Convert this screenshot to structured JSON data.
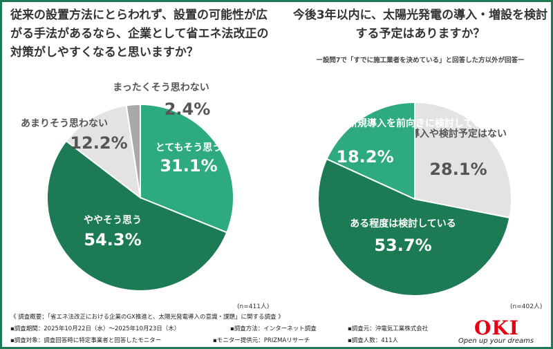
{
  "chart_data": [
    {
      "type": "pie",
      "title": "従来の設置方法にとらわれず、設置の可能性が広がる手法があるなら、企業として省エネ法改正の対策がしやすくなると思いますか？",
      "sample": "(n=411人)",
      "slices": [
        {
          "label": "とてもそう思う",
          "value": 31.1,
          "display": "31.1%",
          "color": "#2dab7f"
        },
        {
          "label": "ややそう思う",
          "value": 54.3,
          "display": "54.3%",
          "color": "#1c7a55"
        },
        {
          "label": "あまりそう思わない",
          "value": 12.2,
          "display": "12.2%",
          "color": "#e3e3e3"
        },
        {
          "label": "まったくそう思わない",
          "value": 2.4,
          "display": "2.4%",
          "color": "#a9a9a9"
        }
      ]
    },
    {
      "type": "pie",
      "title": "今後3年以内に、太陽光発電の導入・増設を検討する予定はありますか？",
      "note": "ー設問7で「すでに施工業者を決めている」と回答した方以外が回答ー",
      "sample": "(n=402人)",
      "slices": [
        {
          "label": "導入や検討予定はない",
          "value": 28.1,
          "display": "28.1%",
          "color": "#e3e3e3"
        },
        {
          "label": "ある程度は検討している",
          "value": 53.7,
          "display": "53.7%",
          "color": "#1c7a55"
        },
        {
          "label": "新規導入を前向きに検討している",
          "value": 18.2,
          "display": "18.2%",
          "color": "#2dab7f"
        }
      ]
    }
  ],
  "footer": {
    "overview": "《 調査概要：「省エネ法改正における企業のGX推進と、太陽光発電導入の意識・課題」に関する調査 》",
    "period": "▪調査期間：2025年10月22日（水）〜2025年10月23日（木）",
    "method": "▪調査方法：インターネット調査",
    "source": "▪調査元：沖電気工業株式会社",
    "target": "▪調査対象：調査回答時に特定事業者と回答したモニター",
    "provider": "▪モニター提供元：PRIZMAリサーチ",
    "count": "▪調査人数：411人"
  },
  "brand": {
    "logo": "OKI",
    "tagline": "Open up your dreams"
  }
}
